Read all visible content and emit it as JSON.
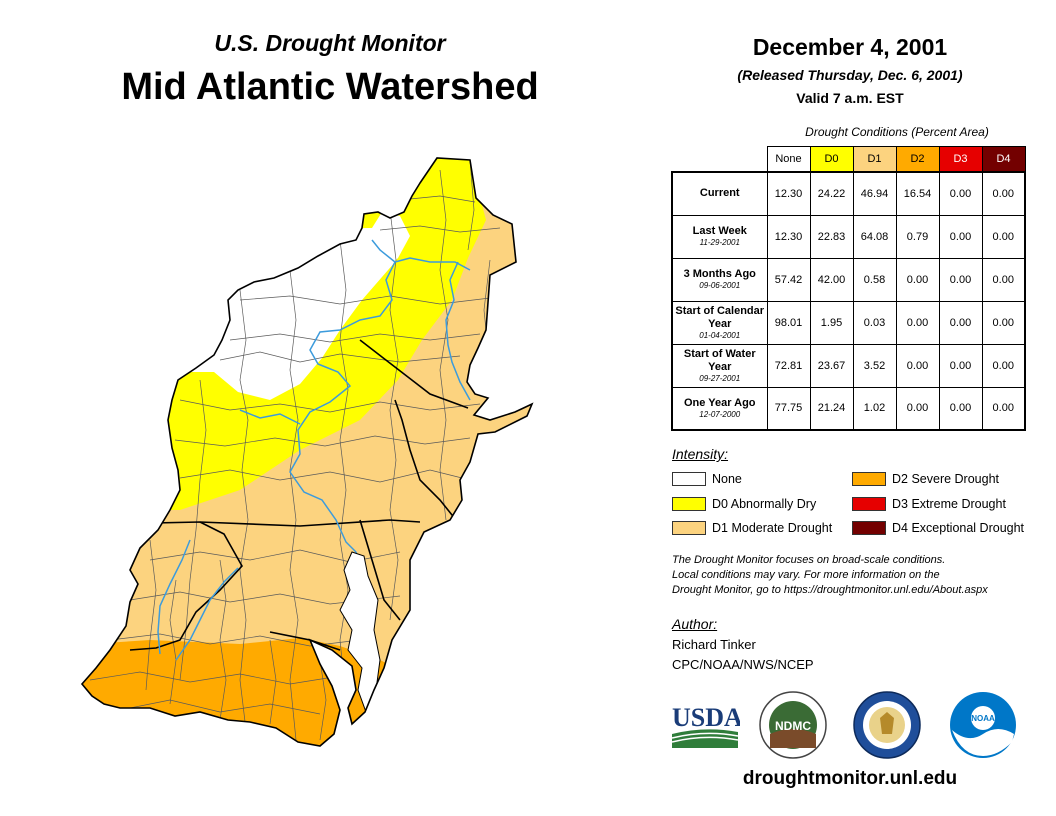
{
  "header": {
    "subtitle": "U.S. Drought Monitor",
    "title": "Mid Atlantic Watershed",
    "date": "December 4, 2001",
    "released": "(Released Thursday, Dec. 6, 2001)",
    "valid": "Valid 7 a.m. EST"
  },
  "table": {
    "caption": "Drought Conditions (Percent Area)",
    "columns": [
      "None",
      "D0",
      "D1",
      "D2",
      "D3",
      "D4"
    ],
    "column_colors": [
      "#ffffff",
      "#ffff00",
      "#fcd37f",
      "#ffaa00",
      "#e60000",
      "#730000"
    ],
    "rows": [
      {
        "label": "Current",
        "date": "",
        "values": [
          "12.30",
          "24.22",
          "46.94",
          "16.54",
          "0.00",
          "0.00"
        ]
      },
      {
        "label": "Last Week",
        "date": "11-29-2001",
        "values": [
          "12.30",
          "22.83",
          "64.08",
          "0.79",
          "0.00",
          "0.00"
        ]
      },
      {
        "label": "3 Months Ago",
        "date": "09-06-2001",
        "values": [
          "57.42",
          "42.00",
          "0.58",
          "0.00",
          "0.00",
          "0.00"
        ]
      },
      {
        "label": "Start of Calendar Year",
        "date": "01-04-2001",
        "values": [
          "98.01",
          "1.95",
          "0.03",
          "0.00",
          "0.00",
          "0.00"
        ]
      },
      {
        "label": "Start of Water Year",
        "date": "09-27-2001",
        "values": [
          "72.81",
          "23.67",
          "3.52",
          "0.00",
          "0.00",
          "0.00"
        ]
      },
      {
        "label": "One Year Ago",
        "date": "12-07-2000",
        "values": [
          "77.75",
          "21.24",
          "1.02",
          "0.00",
          "0.00",
          "0.00"
        ]
      }
    ]
  },
  "legend": {
    "heading": "Intensity:",
    "items": [
      {
        "label": "None",
        "color": "#ffffff"
      },
      {
        "label": "D0 Abnormally Dry",
        "color": "#ffff00"
      },
      {
        "label": "D1 Moderate Drought",
        "color": "#fcd37f"
      },
      {
        "label": "D2 Severe Drought",
        "color": "#ffaa00"
      },
      {
        "label": "D3 Extreme Drought",
        "color": "#e60000"
      },
      {
        "label": "D4 Exceptional Drought",
        "color": "#730000"
      }
    ]
  },
  "note": {
    "line1": "The Drought Monitor focuses on broad-scale conditions.",
    "line2": "Local conditions may vary. For more information on the",
    "line3": "Drought Monitor, go to https://droughtmonitor.unl.edu/About.aspx"
  },
  "author": {
    "heading": "Author:",
    "name": "Richard Tinker",
    "org": "CPC/NOAA/NWS/NCEP"
  },
  "logos": {
    "usda": "USDA",
    "ndmc": "NDMC",
    "noaa": "NOAA"
  },
  "footer": {
    "url": "droughtmonitor.unl.edu"
  },
  "map": {
    "region": "Mid Atlantic Watershed",
    "colors": {
      "none": "#ffffff",
      "d0": "#ffff00",
      "d1": "#fcd37f",
      "d2": "#ffaa00",
      "river": "#3c9bdc",
      "county_line": "#5a5a5a"
    }
  }
}
